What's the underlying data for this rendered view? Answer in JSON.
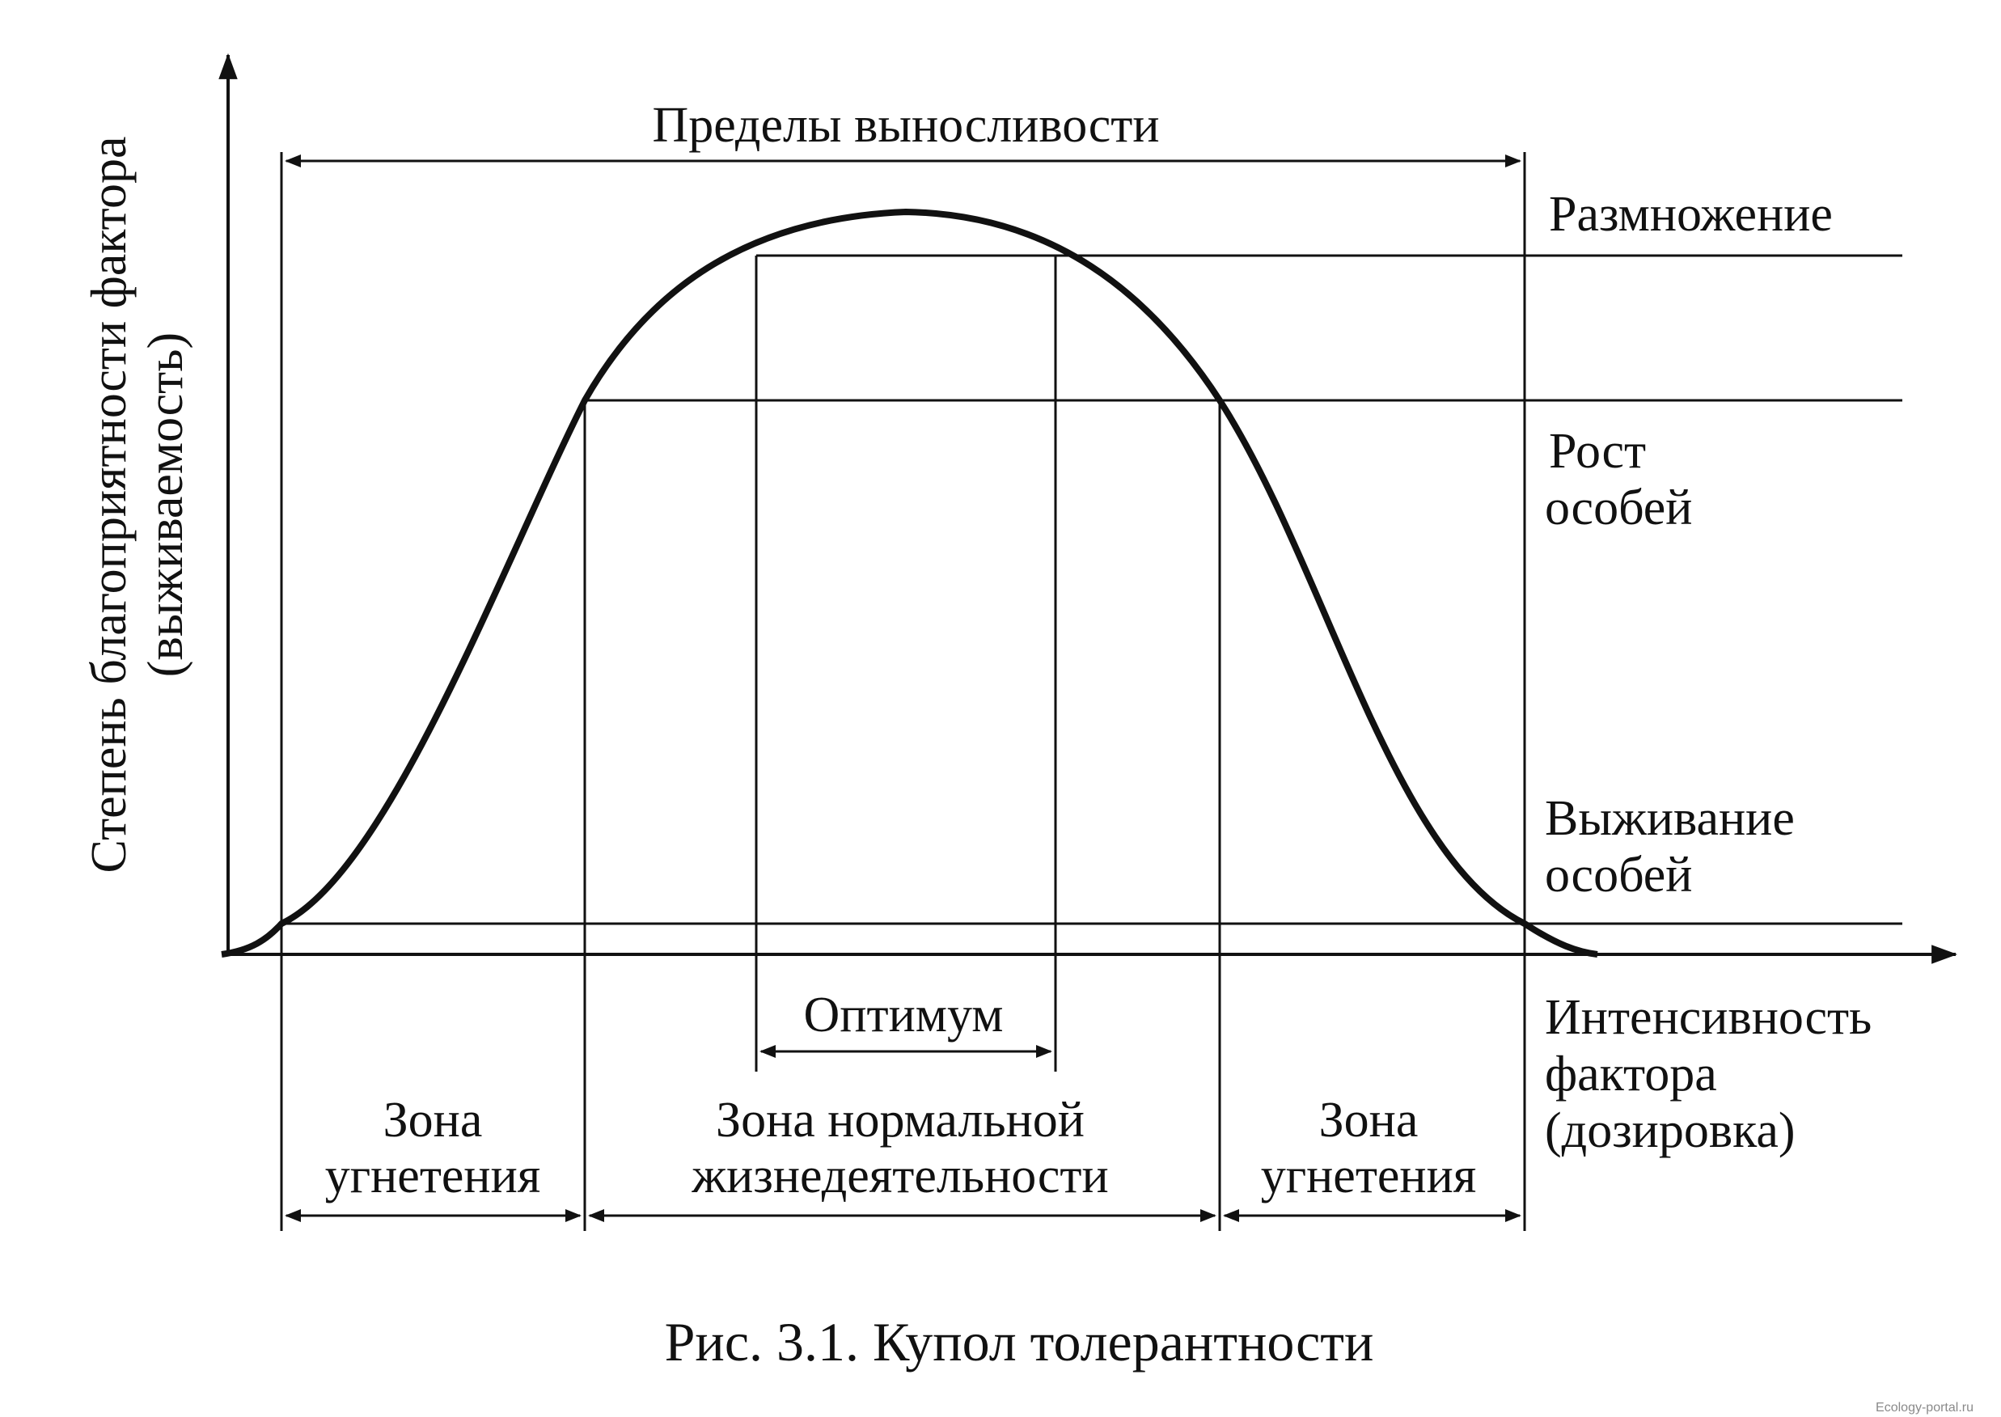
{
  "y_axis_label_line1": "Степень благоприятности фактора",
  "y_axis_label_line2": "(выживаемость)",
  "x_axis_label_line1": "Интенсивность",
  "x_axis_label_line2": "фактора",
  "x_axis_label_line3": "(дозировка)",
  "tolerance_limits": "Пределы выносливости",
  "levels": {
    "reproduction": "Размножение",
    "growth_line1": "Рост",
    "growth_line2": "особей",
    "survival_line1": "Выживание",
    "survival_line2": "особей"
  },
  "optimum": "Оптимум",
  "zones": {
    "left_line1": "Зона",
    "left_line2": "угнетения",
    "middle_line1": "Зона нормальной",
    "middle_line2": "жизнедеятельности",
    "right_line1": "Зона",
    "right_line2": "угнетения"
  },
  "caption": "Рис. 3.1. Купол толерантности",
  "watermark": "Ecology-portal.ru"
}
